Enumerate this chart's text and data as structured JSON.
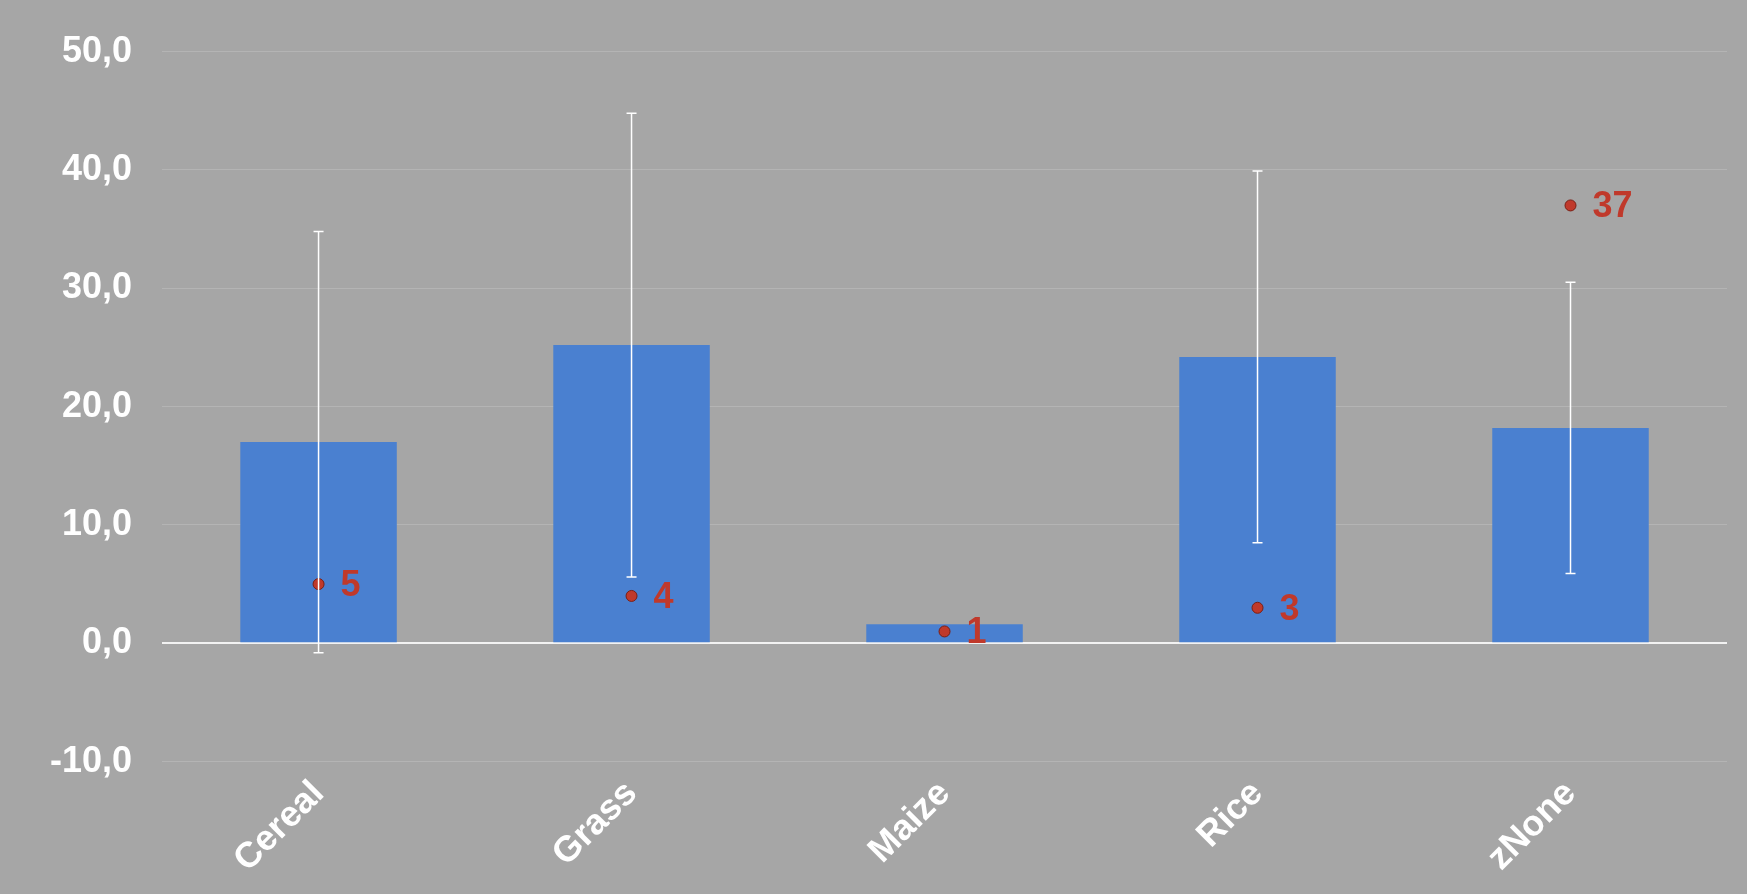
{
  "chart_data": {
    "type": "bar",
    "categories": [
      "Cereal",
      "Grass",
      "Maize",
      "Rice",
      "zNone"
    ],
    "series": [
      {
        "color": "#4a80d0",
        "values": [
          17.0,
          25.2,
          1.6,
          24.2,
          18.2
        ],
        "errors": [
          17.8,
          19.6,
          null,
          15.7,
          12.3
        ]
      },
      {
        "type": "scatter",
        "color": "#c0392b",
        "x": [
          "Cereal",
          "Grass",
          "Maize",
          "Rice",
          "zNone"
        ],
        "values": [
          5,
          4,
          1,
          3,
          37
        ],
        "value_labels": [
          "5",
          "4",
          "1",
          "3",
          "37"
        ]
      }
    ],
    "ylim": [
      -10,
      50
    ],
    "yticks": [
      {
        "value": -10,
        "label": "-10,0"
      },
      {
        "value": 0,
        "label": "0,0"
      },
      {
        "value": 10,
        "label": "10,0"
      },
      {
        "value": 20,
        "label": "20,0"
      },
      {
        "value": 30,
        "label": "30,0"
      },
      {
        "value": 40,
        "label": "40,0"
      },
      {
        "value": 50,
        "label": "50,0"
      }
    ],
    "grid": "y",
    "legend": false,
    "marker": "circle"
  }
}
